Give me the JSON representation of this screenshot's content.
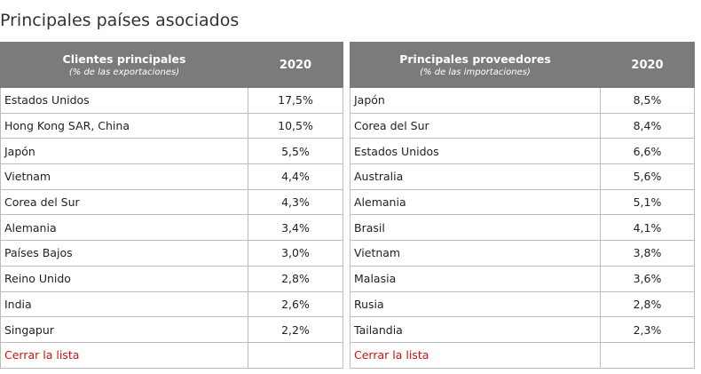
{
  "page_title": "Principales países asociados",
  "customers_table": {
    "header_title": "Clientes principales",
    "header_subtitle": "(% de las exportaciones)",
    "year_header": "2020",
    "rows": [
      {
        "country": "Estados Unidos",
        "value": "17,5%"
      },
      {
        "country": "Hong Kong SAR, China",
        "value": "10,5%"
      },
      {
        "country": "Japón",
        "value": "5,5%"
      },
      {
        "country": "Vietnam",
        "value": "4,4%"
      },
      {
        "country": "Corea del Sur",
        "value": "4,3%"
      },
      {
        "country": "Alemania",
        "value": "3,4%"
      },
      {
        "country": "Países Bajos",
        "value": "3,0%"
      },
      {
        "country": "Reino Unido",
        "value": "2,8%"
      },
      {
        "country": "India",
        "value": "2,6%"
      },
      {
        "country": "Singapur",
        "value": "2,2%"
      }
    ],
    "close_link": "Cerrar la lista"
  },
  "suppliers_table": {
    "header_title": "Principales proveedores",
    "header_subtitle": "(% de las importaciones)",
    "year_header": "2020",
    "rows": [
      {
        "country": "Japón",
        "value": "8,5%"
      },
      {
        "country": "Corea del Sur",
        "value": "8,4%"
      },
      {
        "country": "Estados Unidos",
        "value": "6,6%"
      },
      {
        "country": "Australia",
        "value": "5,6%"
      },
      {
        "country": "Alemania",
        "value": "5,1%"
      },
      {
        "country": "Brasil",
        "value": "4,1%"
      },
      {
        "country": "Vietnam",
        "value": "3,8%"
      },
      {
        "country": "Malasia",
        "value": "3,6%"
      },
      {
        "country": "Rusia",
        "value": "2,8%"
      },
      {
        "country": "Tailandia",
        "value": "2,3%"
      }
    ],
    "close_link": "Cerrar la lista"
  },
  "colors": {
    "header_bg": "#7b7b7b",
    "border": "#bdbdbd",
    "link": "#cc1111"
  }
}
